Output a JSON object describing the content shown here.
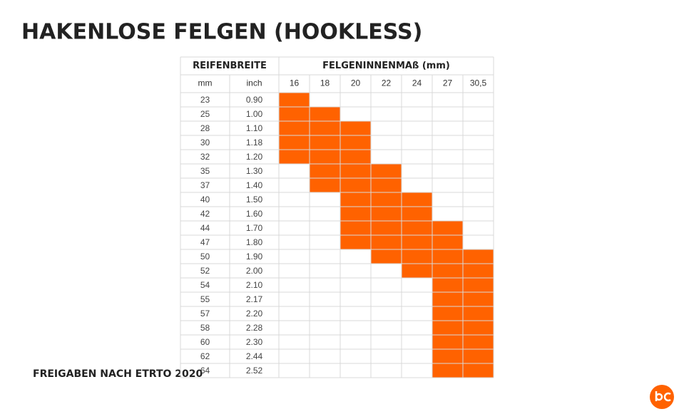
{
  "header": {
    "title": "HAKENLOSE FELGEN (HOOKLESS)"
  },
  "table": {
    "group_headers": [
      "REIFENBREITE",
      "FELGENINNENMAß (mm)"
    ],
    "tire_columns": [
      "mm",
      "inch"
    ],
    "rim_columns": [
      "16",
      "18",
      "20",
      "22",
      "24",
      "27",
      "30,5"
    ],
    "highlight_color": "#ff6200",
    "rows": [
      {
        "mm": "23",
        "inch": "0.90",
        "approved": [
          true,
          false,
          false,
          false,
          false,
          false,
          false
        ]
      },
      {
        "mm": "25",
        "inch": "1.00",
        "approved": [
          true,
          true,
          false,
          false,
          false,
          false,
          false
        ]
      },
      {
        "mm": "28",
        "inch": "1.10",
        "approved": [
          true,
          true,
          true,
          false,
          false,
          false,
          false
        ]
      },
      {
        "mm": "30",
        "inch": "1.18",
        "approved": [
          true,
          true,
          true,
          false,
          false,
          false,
          false
        ]
      },
      {
        "mm": "32",
        "inch": "1.20",
        "approved": [
          true,
          true,
          true,
          false,
          false,
          false,
          false
        ]
      },
      {
        "mm": "35",
        "inch": "1.30",
        "approved": [
          false,
          true,
          true,
          true,
          false,
          false,
          false
        ]
      },
      {
        "mm": "37",
        "inch": "1.40",
        "approved": [
          false,
          true,
          true,
          true,
          false,
          false,
          false
        ]
      },
      {
        "mm": "40",
        "inch": "1.50",
        "approved": [
          false,
          false,
          true,
          true,
          true,
          false,
          false
        ]
      },
      {
        "mm": "42",
        "inch": "1.60",
        "approved": [
          false,
          false,
          true,
          true,
          true,
          false,
          false
        ]
      },
      {
        "mm": "44",
        "inch": "1.70",
        "approved": [
          false,
          false,
          true,
          true,
          true,
          true,
          false
        ]
      },
      {
        "mm": "47",
        "inch": "1.80",
        "approved": [
          false,
          false,
          true,
          true,
          true,
          true,
          false
        ]
      },
      {
        "mm": "50",
        "inch": "1.90",
        "approved": [
          false,
          false,
          false,
          true,
          true,
          true,
          true
        ]
      },
      {
        "mm": "52",
        "inch": "2.00",
        "approved": [
          false,
          false,
          false,
          false,
          true,
          true,
          true
        ]
      },
      {
        "mm": "54",
        "inch": "2.10",
        "approved": [
          false,
          false,
          false,
          false,
          false,
          true,
          true
        ]
      },
      {
        "mm": "55",
        "inch": "2.17",
        "approved": [
          false,
          false,
          false,
          false,
          false,
          true,
          true
        ]
      },
      {
        "mm": "57",
        "inch": "2.20",
        "approved": [
          false,
          false,
          false,
          false,
          false,
          true,
          true
        ]
      },
      {
        "mm": "58",
        "inch": "2.28",
        "approved": [
          false,
          false,
          false,
          false,
          false,
          true,
          true
        ]
      },
      {
        "mm": "60",
        "inch": "2.30",
        "approved": [
          false,
          false,
          false,
          false,
          false,
          true,
          true
        ]
      },
      {
        "mm": "62",
        "inch": "2.44",
        "approved": [
          false,
          false,
          false,
          false,
          false,
          true,
          true
        ]
      },
      {
        "mm": "64",
        "inch": "2.52",
        "approved": [
          false,
          false,
          false,
          false,
          false,
          true,
          true
        ]
      }
    ]
  },
  "footer": {
    "note": "FREIGABEN NACH ETRTO 2020"
  }
}
